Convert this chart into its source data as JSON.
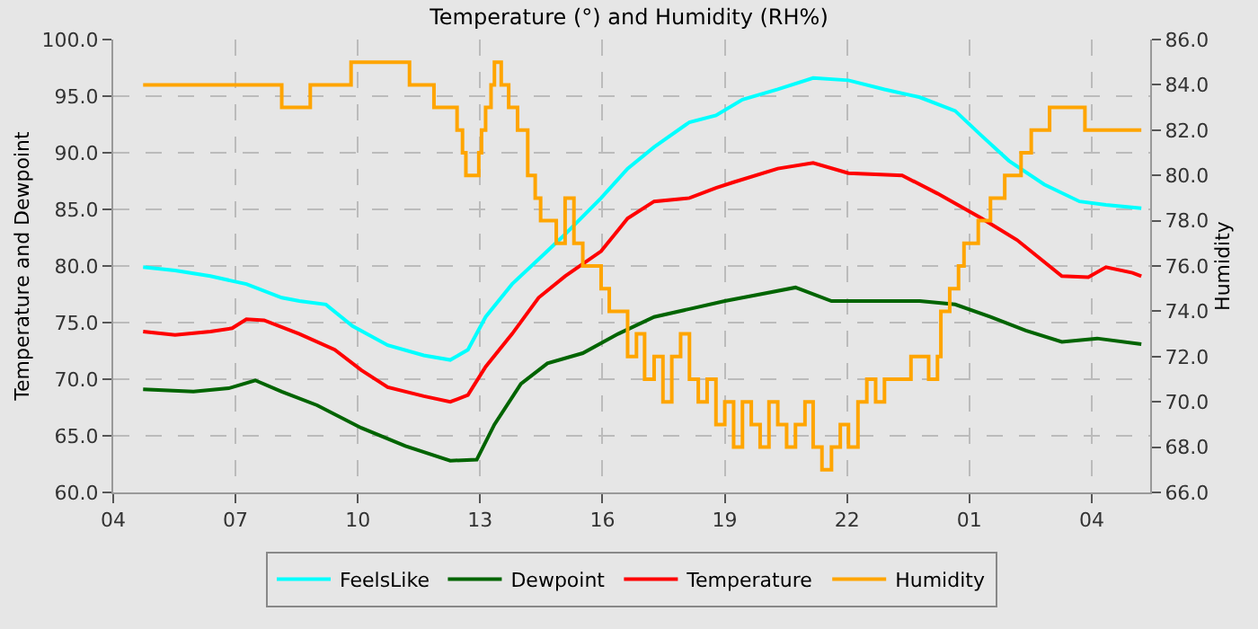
{
  "chart_data": {
    "type": "line",
    "title": "Temperature (°) and Humidity (RH%)",
    "ylabel": "Temperature and Dewpoint",
    "y2label": "Humidity",
    "xlim": [
      "--01-01T04:00",
      "--01-02T05:26"
    ],
    "xticks": [
      {
        "value": "--01-01T04:00",
        "label": "04"
      },
      {
        "value": "--01-01T07:00",
        "label": "07"
      },
      {
        "value": "--01-01T10:00",
        "label": "10"
      },
      {
        "value": "--01-01T13:00",
        "label": "13"
      },
      {
        "value": "--01-01T16:00",
        "label": "16"
      },
      {
        "value": "--01-01T19:00",
        "label": "19"
      },
      {
        "value": "--01-01T22:00",
        "label": "22"
      },
      {
        "value": "--01-02T01:00",
        "label": "01"
      },
      {
        "value": "--01-02T04:00",
        "label": "04"
      }
    ],
    "ylim": [
      60,
      100
    ],
    "yticks": [
      {
        "value": 60,
        "label": "60.0"
      },
      {
        "value": 65,
        "label": "65.0"
      },
      {
        "value": 70,
        "label": "70.0"
      },
      {
        "value": 75,
        "label": "75.0"
      },
      {
        "value": 80,
        "label": "80.0"
      },
      {
        "value": 85,
        "label": "85.0"
      },
      {
        "value": 90,
        "label": "90.0"
      },
      {
        "value": 95,
        "label": "95.0"
      },
      {
        "value": 100,
        "label": "100.0"
      }
    ],
    "y2lim": [
      66,
      86
    ],
    "y2ticks": [
      {
        "value": 66,
        "label": "66.0"
      },
      {
        "value": 68,
        "label": "68.0"
      },
      {
        "value": 70,
        "label": "70.0"
      },
      {
        "value": 72,
        "label": "72.0"
      },
      {
        "value": 74,
        "label": "74.0"
      },
      {
        "value": 76,
        "label": "76.0"
      },
      {
        "value": 78,
        "label": "78.0"
      },
      {
        "value": 80,
        "label": "80.0"
      },
      {
        "value": 82,
        "label": "82.0"
      },
      {
        "value": 84,
        "label": "84.0"
      },
      {
        "value": 86,
        "label": "86.0"
      }
    ],
    "grid": true,
    "legend": "bottom",
    "marker": "none",
    "line_style": "solid",
    "series": [
      {
        "name": "FeelsLike",
        "color": "#00ffff",
        "x": [
          "--01-01T04:44",
          "--01-01T05:31",
          "--01-01T06:23",
          "--01-01T07:16",
          "--01-01T08:08",
          "--01-01T08:34",
          "--01-01T09:13",
          "--01-01T09:52",
          "--01-01T10:44",
          "--01-01T11:37",
          "--01-01T12:16",
          "--01-01T12:42",
          "--01-01T13:08",
          "--01-01T13:47",
          "--01-01T14:26",
          "--01-01T15:05",
          "--01-01T15:58",
          "--01-01T16:37",
          "--01-01T17:16",
          "--01-01T18:08",
          "--01-01T18:47",
          "--01-01T19:26",
          "--01-01T20:18",
          "--01-01T21:10",
          "--01-01T22:02",
          "--01-01T22:55",
          "--01-01T23:47",
          "--01-02T00:39",
          "--01-02T01:18",
          "--01-02T01:58",
          "--01-02T02:50",
          "--01-02T03:42",
          "--01-02T04:21",
          "--01-02T05:13"
        ],
        "values": [
          79.9,
          79.6,
          79.1,
          78.4,
          77.2,
          76.9,
          76.6,
          74.7,
          73.0,
          72.1,
          71.7,
          72.6,
          75.5,
          78.4,
          80.6,
          82.8,
          86.0,
          88.6,
          90.5,
          92.7,
          93.3,
          94.7,
          95.6,
          96.6,
          96.4,
          95.6,
          94.9,
          93.7,
          91.5,
          89.3,
          87.2,
          85.7,
          85.4,
          85.1
        ]
      },
      {
        "name": "Dewpoint",
        "color": "#006400",
        "x": [
          "--01-01T04:44",
          "--01-01T05:58",
          "--01-01T06:50",
          "--01-01T07:29",
          "--01-01T08:08",
          "--01-01T09:00",
          "--01-01T10:05",
          "--01-01T11:10",
          "--01-01T12:16",
          "--01-01T12:55",
          "--01-01T13:21",
          "--01-01T14:00",
          "--01-01T14:39",
          "--01-01T15:31",
          "--01-01T16:23",
          "--01-01T17:16",
          "--01-01T18:08",
          "--01-01T19:00",
          "--01-01T19:52",
          "--01-01T20:44",
          "--01-01T21:37",
          "--01-01T22:29",
          "--01-01T23:47",
          "--01-02T00:39",
          "--01-02T01:31",
          "--01-02T02:23",
          "--01-02T03:16",
          "--01-02T04:08",
          "--01-02T05:13"
        ],
        "values": [
          69.1,
          68.9,
          69.2,
          69.9,
          68.9,
          67.7,
          65.7,
          64.1,
          62.8,
          62.9,
          66.0,
          69.6,
          71.4,
          72.3,
          74.0,
          75.5,
          76.2,
          76.9,
          77.5,
          78.1,
          76.9,
          76.9,
          76.9,
          76.6,
          75.5,
          74.3,
          73.3,
          73.6,
          73.1
        ]
      },
      {
        "name": "Temperature",
        "color": "#ff0000",
        "x": [
          "--01-01T04:44",
          "--01-01T05:31",
          "--01-01T06:23",
          "--01-01T06:55",
          "--01-01T07:16",
          "--01-01T07:42",
          "--01-01T08:34",
          "--01-01T09:26",
          "--01-01T10:05",
          "--01-01T10:44",
          "--01-01T11:37",
          "--01-01T12:16",
          "--01-01T12:42",
          "--01-01T13:08",
          "--01-01T13:47",
          "--01-01T14:26",
          "--01-01T15:05",
          "--01-01T15:58",
          "--01-01T16:37",
          "--01-01T17:16",
          "--01-01T18:08",
          "--01-01T18:47",
          "--01-01T19:13",
          "--01-01T20:18",
          "--01-01T21:10",
          "--01-01T22:02",
          "--01-01T23:21",
          "--01-02T00:13",
          "--01-02T01:18",
          "--01-02T02:10",
          "--01-02T03:16",
          "--01-02T03:55",
          "--01-02T04:21",
          "--01-02T05:00",
          "--01-02T05:13"
        ],
        "values": [
          74.2,
          73.9,
          74.2,
          74.5,
          75.3,
          75.2,
          74.0,
          72.6,
          70.8,
          69.3,
          68.5,
          68.0,
          68.6,
          71.1,
          74.0,
          77.2,
          79.1,
          81.3,
          84.2,
          85.7,
          86.0,
          86.9,
          87.4,
          88.6,
          89.1,
          88.2,
          88.0,
          86.4,
          84.2,
          82.3,
          79.1,
          79.0,
          79.9,
          79.4,
          79.1
        ]
      },
      {
        "name": "Humidity",
        "color": "#ffa500",
        "type": "step",
        "axis": "y2",
        "x": [
          "--01-01T04:44",
          "--01-01T08:08",
          "--01-01T08:50",
          "--01-01T09:50",
          "--01-01T11:16",
          "--01-01T11:52",
          "--01-01T12:26",
          "--01-01T12:34",
          "--01-01T12:39",
          "--01-01T12:58",
          "--01-01T13:02",
          "--01-01T13:08",
          "--01-01T13:16",
          "--01-01T13:21",
          "--01-01T13:31",
          "--01-01T13:42",
          "--01-01T13:55",
          "--01-01T14:10",
          "--01-01T14:21",
          "--01-01T14:29",
          "--01-01T14:39",
          "--01-01T14:52",
          "--01-01T15:05",
          "--01-01T15:18",
          "--01-01T15:31",
          "--01-01T15:44",
          "--01-01T15:58",
          "--01-01T16:10",
          "--01-01T16:23",
          "--01-01T16:37",
          "--01-01T16:50",
          "--01-01T17:02",
          "--01-01T17:16",
          "--01-01T17:29",
          "--01-01T17:42",
          "--01-01T17:55",
          "--01-01T18:08",
          "--01-01T18:21",
          "--01-01T18:34",
          "--01-01T18:47",
          "--01-01T19:00",
          "--01-01T19:13",
          "--01-01T19:26",
          "--01-01T19:39",
          "--01-01T19:52",
          "--01-01T20:05",
          "--01-01T20:18",
          "--01-01T20:31",
          "--01-01T20:44",
          "--01-01T20:58",
          "--01-01T21:10",
          "--01-01T21:23",
          "--01-01T21:37",
          "--01-01T21:50",
          "--01-01T22:02",
          "--01-01T22:16",
          "--01-01T22:29",
          "--01-01T22:42",
          "--01-01T22:55",
          "--01-01T23:08",
          "--01-01T23:21",
          "--01-01T23:34",
          "--01-01T23:47",
          "--01-02T00:00",
          "--01-02T00:13",
          "--01-02T00:18",
          "--01-02T00:31",
          "--01-02T00:44",
          "--01-02T00:52",
          "--01-02T01:13",
          "--01-02T01:31",
          "--01-02T01:52",
          "--01-02T02:16",
          "--01-02T02:31",
          "--01-02T02:58",
          "--01-02T03:50",
          "--01-02T05:13"
        ],
        "values": [
          84,
          83,
          84,
          85,
          84,
          83,
          82,
          81,
          80,
          81,
          82,
          83,
          84,
          85,
          84,
          83,
          82,
          80,
          79,
          78,
          78,
          77,
          79,
          77,
          76,
          76,
          75,
          74,
          74,
          72,
          73,
          71,
          72,
          70,
          72,
          73,
          71,
          70,
          71,
          69,
          70,
          68,
          70,
          69,
          68,
          70,
          69,
          68,
          69,
          70,
          68,
          67,
          68,
          69,
          68,
          70,
          71,
          70,
          71,
          71,
          71,
          72,
          72,
          71,
          72,
          74,
          75,
          76,
          77,
          78,
          79,
          80,
          81,
          82,
          83,
          82,
          82
        ]
      }
    ]
  }
}
